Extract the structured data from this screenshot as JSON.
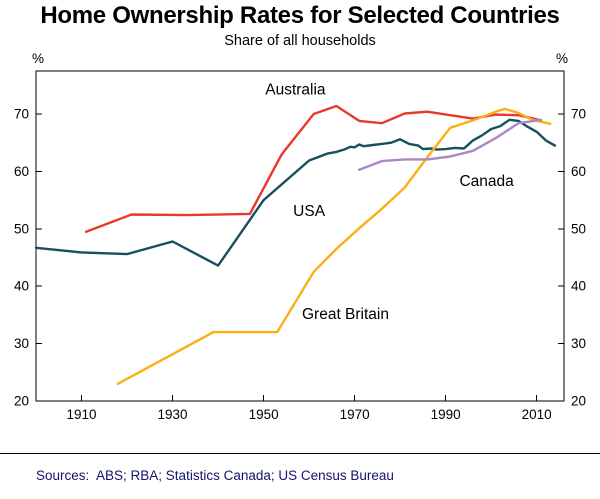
{
  "colors": {
    "sources_text": "#14146b",
    "axis": "#000000",
    "background": "#ffffff"
  },
  "chart_data": {
    "type": "line",
    "title": "Home Ownership Rates for Selected Countries",
    "subtitle": "Share of all households",
    "unit": "%",
    "sources": "Sources:  ABS; RBA; Statistics Canada; US Census Bureau",
    "xlim": [
      1900,
      2016
    ],
    "ylim": [
      20,
      77.5
    ],
    "xticks": [
      1910,
      1930,
      1950,
      1970,
      1990,
      2010
    ],
    "yticks": [
      20,
      30,
      40,
      50,
      60,
      70
    ],
    "grid": false,
    "frame": "box",
    "legend": "inline-labels",
    "series": [
      {
        "id": "usa",
        "name": "USA",
        "color": "#15505c",
        "label_year": 1960,
        "label_value": 52.2,
        "points": [
          [
            1900,
            46.7
          ],
          [
            1910,
            45.9
          ],
          [
            1920,
            45.6
          ],
          [
            1930,
            47.8
          ],
          [
            1940,
            43.6
          ],
          [
            1950,
            55.0
          ],
          [
            1960,
            61.9
          ],
          [
            1964,
            63.1
          ],
          [
            1966,
            63.4
          ],
          [
            1968,
            63.9
          ],
          [
            1969,
            64.3
          ],
          [
            1970,
            64.2
          ],
          [
            1971,
            64.7
          ],
          [
            1972,
            64.4
          ],
          [
            1974,
            64.6
          ],
          [
            1976,
            64.8
          ],
          [
            1978,
            65.0
          ],
          [
            1980,
            65.6
          ],
          [
            1982,
            64.8
          ],
          [
            1984,
            64.5
          ],
          [
            1985,
            63.9
          ],
          [
            1987,
            64.0
          ],
          [
            1988,
            63.8
          ],
          [
            1990,
            63.9
          ],
          [
            1992,
            64.1
          ],
          [
            1994,
            64.0
          ],
          [
            1995,
            64.7
          ],
          [
            1996,
            65.4
          ],
          [
            1998,
            66.3
          ],
          [
            2000,
            67.4
          ],
          [
            2002,
            67.9
          ],
          [
            2004,
            69.0
          ],
          [
            2006,
            68.8
          ],
          [
            2008,
            67.8
          ],
          [
            2010,
            66.9
          ],
          [
            2012,
            65.4
          ],
          [
            2014,
            64.5
          ]
        ]
      },
      {
        "id": "australia",
        "name": "Australia",
        "color": "#e8392c",
        "label_year": 1957,
        "label_value": 73.4,
        "points": [
          [
            1911,
            49.5
          ],
          [
            1921,
            52.5
          ],
          [
            1933,
            52.4
          ],
          [
            1947,
            52.6
          ],
          [
            1954,
            63.0
          ],
          [
            1961,
            70.0
          ],
          [
            1966,
            71.4
          ],
          [
            1971,
            68.8
          ],
          [
            1976,
            68.4
          ],
          [
            1981,
            70.1
          ],
          [
            1986,
            70.4
          ],
          [
            1991,
            69.8
          ],
          [
            1996,
            69.2
          ],
          [
            2001,
            69.9
          ],
          [
            2006,
            69.8
          ],
          [
            2011,
            68.9
          ]
        ]
      },
      {
        "id": "great_britain",
        "name": "Great Britain",
        "color": "#fbaf17",
        "label_year": 1968,
        "label_value": 34.3,
        "points": [
          [
            1918,
            23.0
          ],
          [
            1939,
            32.0
          ],
          [
            1953,
            32.0
          ],
          [
            1961,
            42.5
          ],
          [
            1966,
            46.5
          ],
          [
            1971,
            50.1
          ],
          [
            1976,
            53.5
          ],
          [
            1981,
            57.2
          ],
          [
            1986,
            62.5
          ],
          [
            1991,
            67.6
          ],
          [
            1996,
            68.9
          ],
          [
            2001,
            70.4
          ],
          [
            2003,
            70.9
          ],
          [
            2006,
            70.2
          ],
          [
            2009,
            69.0
          ],
          [
            2013,
            68.3
          ]
        ]
      },
      {
        "id": "canada",
        "name": "Canada",
        "color": "#ab87c6",
        "label_year": 1999,
        "label_value": 57.5,
        "points": [
          [
            1971,
            60.3
          ],
          [
            1976,
            61.8
          ],
          [
            1981,
            62.1
          ],
          [
            1986,
            62.1
          ],
          [
            1991,
            62.6
          ],
          [
            1996,
            63.6
          ],
          [
            2001,
            65.8
          ],
          [
            2006,
            68.4
          ],
          [
            2011,
            69.0
          ]
        ]
      }
    ]
  }
}
